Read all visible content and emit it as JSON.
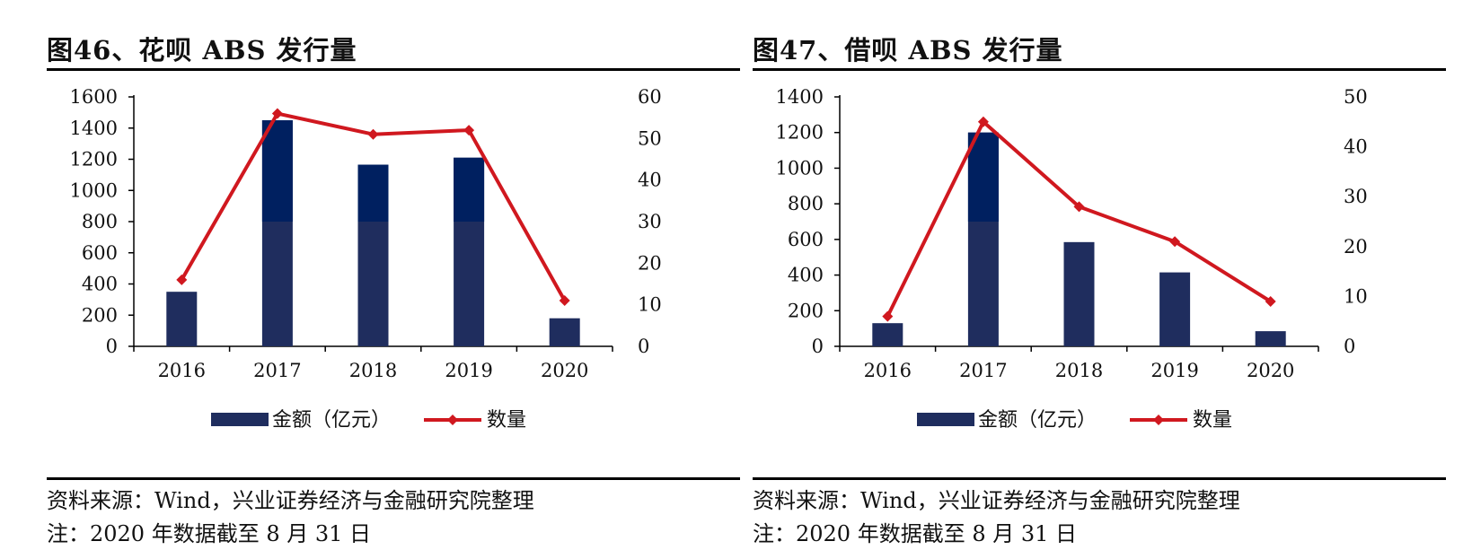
{
  "colors": {
    "bar": "#1f2d5e",
    "bar_top": "#002060",
    "line": "#d0181f",
    "axis": "#000000"
  },
  "charts": [
    {
      "title": "图46、花呗 ABS 发行量",
      "source": "资料来源：Wind，兴业证券经济与金融研究院整理",
      "note": "注：2020 年数据截至 8 月 31 日",
      "legend": {
        "bar": "金额（亿元）",
        "line": "数量"
      }
    },
    {
      "title": "图47、借呗 ABS 发行量",
      "source": "资料来源：Wind，兴业证券经济与金融研究院整理",
      "note": "注：2020 年数据截至 8 月 31 日",
      "legend": {
        "bar": "金额（亿元）",
        "line": "数量"
      }
    }
  ],
  "chart_data": [
    {
      "type": "bar+line",
      "title": "图46、花呗 ABS 发行量",
      "categories": [
        "2016",
        "2017",
        "2018",
        "2019",
        "2020"
      ],
      "series": [
        {
          "name": "金额（亿元）",
          "type": "bar",
          "axis": "left",
          "values": [
            350,
            1450,
            1165,
            1210,
            180
          ]
        },
        {
          "name": "数量",
          "type": "line",
          "axis": "right",
          "values": [
            16,
            56,
            51,
            52,
            11
          ]
        }
      ],
      "y_left": {
        "min": 0,
        "max": 1600,
        "ticks": [
          "0",
          "200",
          "400",
          "600",
          "800",
          "1000",
          "1200",
          "1400",
          "1600"
        ]
      },
      "y_right": {
        "min": 0,
        "max": 60,
        "ticks": [
          "0",
          "10",
          "20",
          "30",
          "40",
          "50",
          "60"
        ]
      },
      "legend_position": "bottom"
    },
    {
      "type": "bar+line",
      "title": "图47、借呗 ABS 发行量",
      "categories": [
        "2016",
        "2017",
        "2018",
        "2019",
        "2020"
      ],
      "series": [
        {
          "name": "金额（亿元）",
          "type": "bar",
          "axis": "left",
          "values": [
            130,
            1200,
            585,
            415,
            85
          ]
        },
        {
          "name": "数量",
          "type": "line",
          "axis": "right",
          "values": [
            6,
            45,
            28,
            21,
            9
          ]
        }
      ],
      "y_left": {
        "min": 0,
        "max": 1400,
        "ticks": [
          "0",
          "200",
          "400",
          "600",
          "800",
          "1000",
          "1200",
          "1400"
        ]
      },
      "y_right": {
        "min": 0,
        "max": 50,
        "ticks": [
          "0",
          "10",
          "20",
          "30",
          "40",
          "50"
        ]
      },
      "legend_position": "bottom"
    }
  ]
}
